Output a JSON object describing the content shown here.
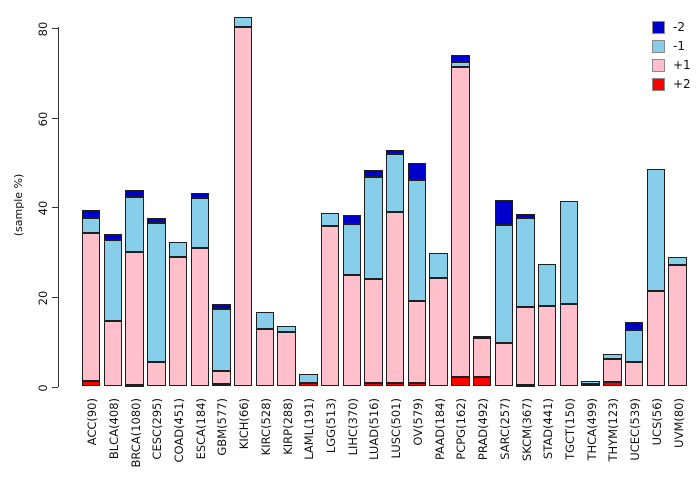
{
  "chart_data": {
    "type": "bar",
    "stacked": true,
    "title": "",
    "xlabel": "",
    "ylabel": "(sample %)",
    "ylim": [
      0,
      80
    ],
    "yticks": [
      0,
      20,
      40,
      60,
      80
    ],
    "grid": false,
    "legend_position": "top-right",
    "legend": [
      {
        "label": "-2",
        "color": "#0000CD"
      },
      {
        "label": "-1",
        "color": "#87CEEB"
      },
      {
        "label": "+1",
        "color": "#FFC0CB"
      },
      {
        "label": "+2",
        "color": "#FF0000"
      }
    ],
    "categories": [
      "ACC(90)",
      "BLCA(408)",
      "BRCA(1080)",
      "CESC(295)",
      "COAD(451)",
      "ESCA(184)",
      "GBM(577)",
      "KICH(66)",
      "KIRC(528)",
      "KIRP(288)",
      "LAML(191)",
      "LGG(513)",
      "LIHC(370)",
      "LUAD(516)",
      "LUSC(501)",
      "OV(579)",
      "PAAD(184)",
      "PCPG(162)",
      "PRAD(492)",
      "SARC(257)",
      "SKCM(367)",
      "STAD(441)",
      "TGCT(150)",
      "THCA(499)",
      "THYM(123)",
      "UCEC(539)",
      "UCS(56)",
      "UVM(80)"
    ],
    "series": [
      {
        "name": "+2",
        "color": "#FF0000",
        "values": [
          1.2,
          0,
          0.3,
          0,
          0,
          0,
          0.5,
          0,
          0,
          0,
          0.7,
          0,
          0,
          0.7,
          0.8,
          0.8,
          0,
          2.2,
          2.2,
          0,
          0.3,
          0,
          0,
          0,
          1.1,
          0,
          0,
          0
        ]
      },
      {
        "name": "+1",
        "color": "#FFC0CB",
        "values": [
          33.1,
          14.7,
          29.7,
          5.5,
          28.8,
          30.9,
          2.9,
          80.3,
          12.9,
          12.1,
          0,
          35.9,
          24.9,
          23.2,
          38.1,
          18.3,
          24.2,
          69.2,
          8.7,
          9.6,
          17.5,
          18.0,
          18.4,
          0.6,
          5.0,
          5.5,
          21.3,
          27.1
        ]
      },
      {
        "name": "-1",
        "color": "#87CEEB",
        "values": [
          3.3,
          17.9,
          12.4,
          30.9,
          3.5,
          11.1,
          13.8,
          2.2,
          3.7,
          1.3,
          2.2,
          2.9,
          11.4,
          22.9,
          12.9,
          27.0,
          5.6,
          1.0,
          0.4,
          26.4,
          19.7,
          9.3,
          23.1,
          0.6,
          1.1,
          7.1,
          27.2,
          1.7
        ]
      },
      {
        "name": "-2",
        "color": "#0000CD",
        "values": [
          1.7,
          1.5,
          1.5,
          1.2,
          0,
          1.2,
          1.1,
          0,
          0,
          0,
          0,
          0,
          1.9,
          1.5,
          0.9,
          3.7,
          0,
          1.6,
          0,
          5.6,
          1.0,
          0,
          0,
          0,
          0,
          1.9,
          0,
          0
        ]
      }
    ]
  }
}
